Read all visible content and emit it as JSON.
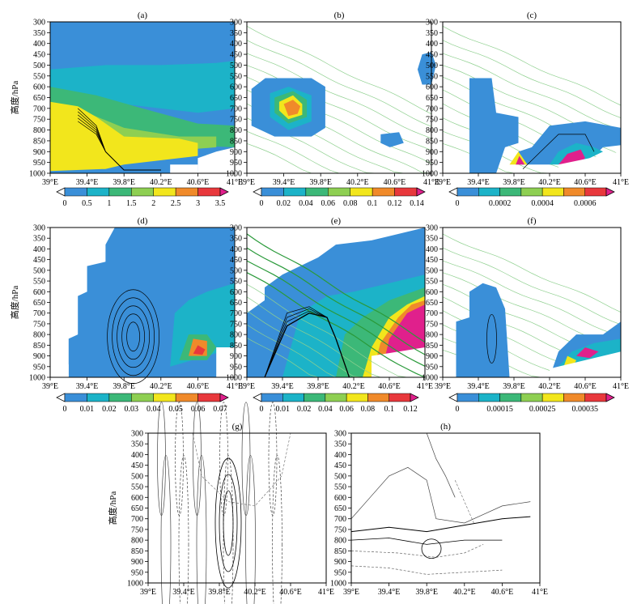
{
  "figure": {
    "y_axis_label": "高度/hPa",
    "y_ticks": [
      "300",
      "350",
      "400",
      "450",
      "500",
      "550",
      "600",
      "650",
      "700",
      "750",
      "800",
      "850",
      "900",
      "950",
      "1000"
    ],
    "x_ticks": [
      "39°E",
      "39.4°E",
      "39.8°E",
      "40.2°E",
      "40.6°E",
      "41°E"
    ]
  },
  "panels": [
    {
      "id": "a",
      "label": "(a)",
      "colorbar_ticks": [
        "0",
        "0.5",
        "1",
        "1.5",
        "2",
        "2.5",
        "3",
        "3.5"
      ],
      "colors": [
        "#ffffff",
        "#3a8fd8",
        "#1cb3c8",
        "#3cb878",
        "#8ecf52",
        "#f2e61c",
        "#f08a2a",
        "#e8383c",
        "#e0208c"
      ]
    },
    {
      "id": "b",
      "label": "(b)",
      "colorbar_ticks": [
        "0",
        "0.02",
        "0.04",
        "0.06",
        "0.08",
        "0.1",
        "0.12",
        "0.14"
      ],
      "colors": [
        "#ffffff",
        "#3a8fd8",
        "#1cb3c8",
        "#3cb878",
        "#8ecf52",
        "#f2e61c",
        "#f08a2a",
        "#e8383c",
        "#e0208c"
      ]
    },
    {
      "id": "c",
      "label": "(c)",
      "colorbar_ticks": [
        "0",
        "0.0002",
        "0.0004",
        "0.0006"
      ],
      "colors": [
        "#ffffff",
        "#3a8fd8",
        "#1cb3c8",
        "#3cb878",
        "#8ecf52",
        "#f2e61c",
        "#f08a2a",
        "#e8383c",
        "#e0208c"
      ]
    },
    {
      "id": "d",
      "label": "(d)",
      "colorbar_ticks": [
        "0",
        "0.01",
        "0.02",
        "0.03",
        "0.04",
        "0.05",
        "0.06",
        "0.07"
      ],
      "colors": [
        "#ffffff",
        "#3a8fd8",
        "#1cb3c8",
        "#3cb878",
        "#8ecf52",
        "#f2e61c",
        "#f08a2a",
        "#e8383c",
        "#e0208c"
      ]
    },
    {
      "id": "e",
      "label": "(e)",
      "colorbar_ticks": [
        "0",
        "0.01",
        "0.02",
        "0.04",
        "0.06",
        "0.08",
        "0.1",
        "0.12"
      ],
      "colors": [
        "#ffffff",
        "#3a8fd8",
        "#1cb3c8",
        "#3cb878",
        "#8ecf52",
        "#f2e61c",
        "#f08a2a",
        "#e8383c",
        "#e0208c"
      ]
    },
    {
      "id": "f",
      "label": "(f)",
      "colorbar_ticks": [
        "0",
        "0.00015",
        "0.00025",
        "0.00035"
      ],
      "colors": [
        "#ffffff",
        "#3a8fd8",
        "#1cb3c8",
        "#3cb878",
        "#8ecf52",
        "#f2e61c",
        "#f08a2a",
        "#e8383c",
        "#e0208c"
      ]
    },
    {
      "id": "g",
      "label": "(g)"
    },
    {
      "id": "h",
      "label": "(h)"
    }
  ],
  "chart_data": [
    {
      "type": "heatmap",
      "panel": "(a)",
      "x_range": [
        39,
        41
      ],
      "y_range": [
        1000,
        300
      ],
      "colorbar": [
        0,
        0.5,
        1,
        1.5,
        2,
        2.5,
        3,
        3.5
      ]
    },
    {
      "type": "heatmap",
      "panel": "(b)",
      "x_range": [
        39,
        41
      ],
      "y_range": [
        1000,
        300
      ],
      "colorbar": [
        0,
        0.02,
        0.04,
        0.06,
        0.08,
        0.1,
        0.12,
        0.14
      ]
    },
    {
      "type": "heatmap",
      "panel": "(c)",
      "x_range": [
        39,
        41
      ],
      "y_range": [
        1000,
        300
      ],
      "colorbar": [
        0,
        0.0002,
        0.0004,
        0.0006
      ]
    },
    {
      "type": "heatmap",
      "panel": "(d)",
      "x_range": [
        39,
        41
      ],
      "y_range": [
        1000,
        300
      ],
      "colorbar": [
        0,
        0.01,
        0.02,
        0.03,
        0.04,
        0.05,
        0.06,
        0.07
      ]
    },
    {
      "type": "heatmap",
      "panel": "(e)",
      "x_range": [
        39,
        41
      ],
      "y_range": [
        1000,
        300
      ],
      "colorbar": [
        0,
        0.01,
        0.02,
        0.04,
        0.06,
        0.08,
        0.1,
        0.12
      ]
    },
    {
      "type": "heatmap",
      "panel": "(f)",
      "x_range": [
        39,
        41
      ],
      "y_range": [
        1000,
        300
      ],
      "colorbar": [
        0,
        0.00015,
        0.00025,
        0.00035
      ]
    },
    {
      "type": "line",
      "panel": "(g)",
      "x_range": [
        39,
        41
      ],
      "y_range": [
        1000,
        300
      ]
    },
    {
      "type": "line",
      "panel": "(h)",
      "x_range": [
        39,
        41
      ],
      "y_range": [
        1000,
        300
      ]
    }
  ]
}
